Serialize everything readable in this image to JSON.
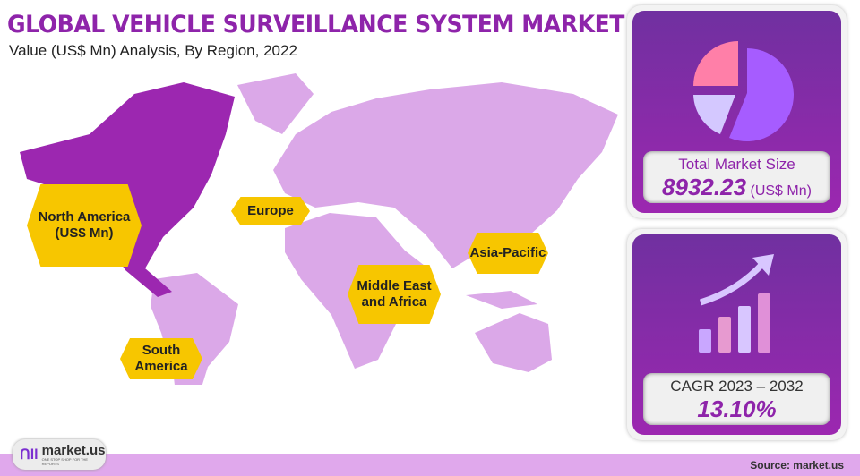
{
  "header": {
    "title": "GLOBAL VEHICLE SURVEILLANCE SYSTEM MARKET",
    "subtitle": "Value (US$ Mn) Analysis, By Region, 2022"
  },
  "map": {
    "highlight_color": "#9c27b0",
    "base_color": "#dba8e8",
    "highlighted_region": "North America",
    "labels": {
      "north_america": "North America (US$ Mn)",
      "europe": "Europe",
      "mea": "Middle East and Africa",
      "apac": "Asia-Pacific",
      "south_america": "South America"
    }
  },
  "market_size": {
    "label": "Total Market Size",
    "value": "8932.23",
    "unit": "(US$ Mn)",
    "icon": "pie-chart-icon"
  },
  "cagr": {
    "label": "CAGR 2023 – 2032",
    "value": "13.10%",
    "icon": "growth-bar-chart-icon"
  },
  "footer": {
    "logo_text": "market.us",
    "logo_tagline": "ONE STOP SHOP FOR THE REPORTS",
    "source": "Source: market.us"
  }
}
